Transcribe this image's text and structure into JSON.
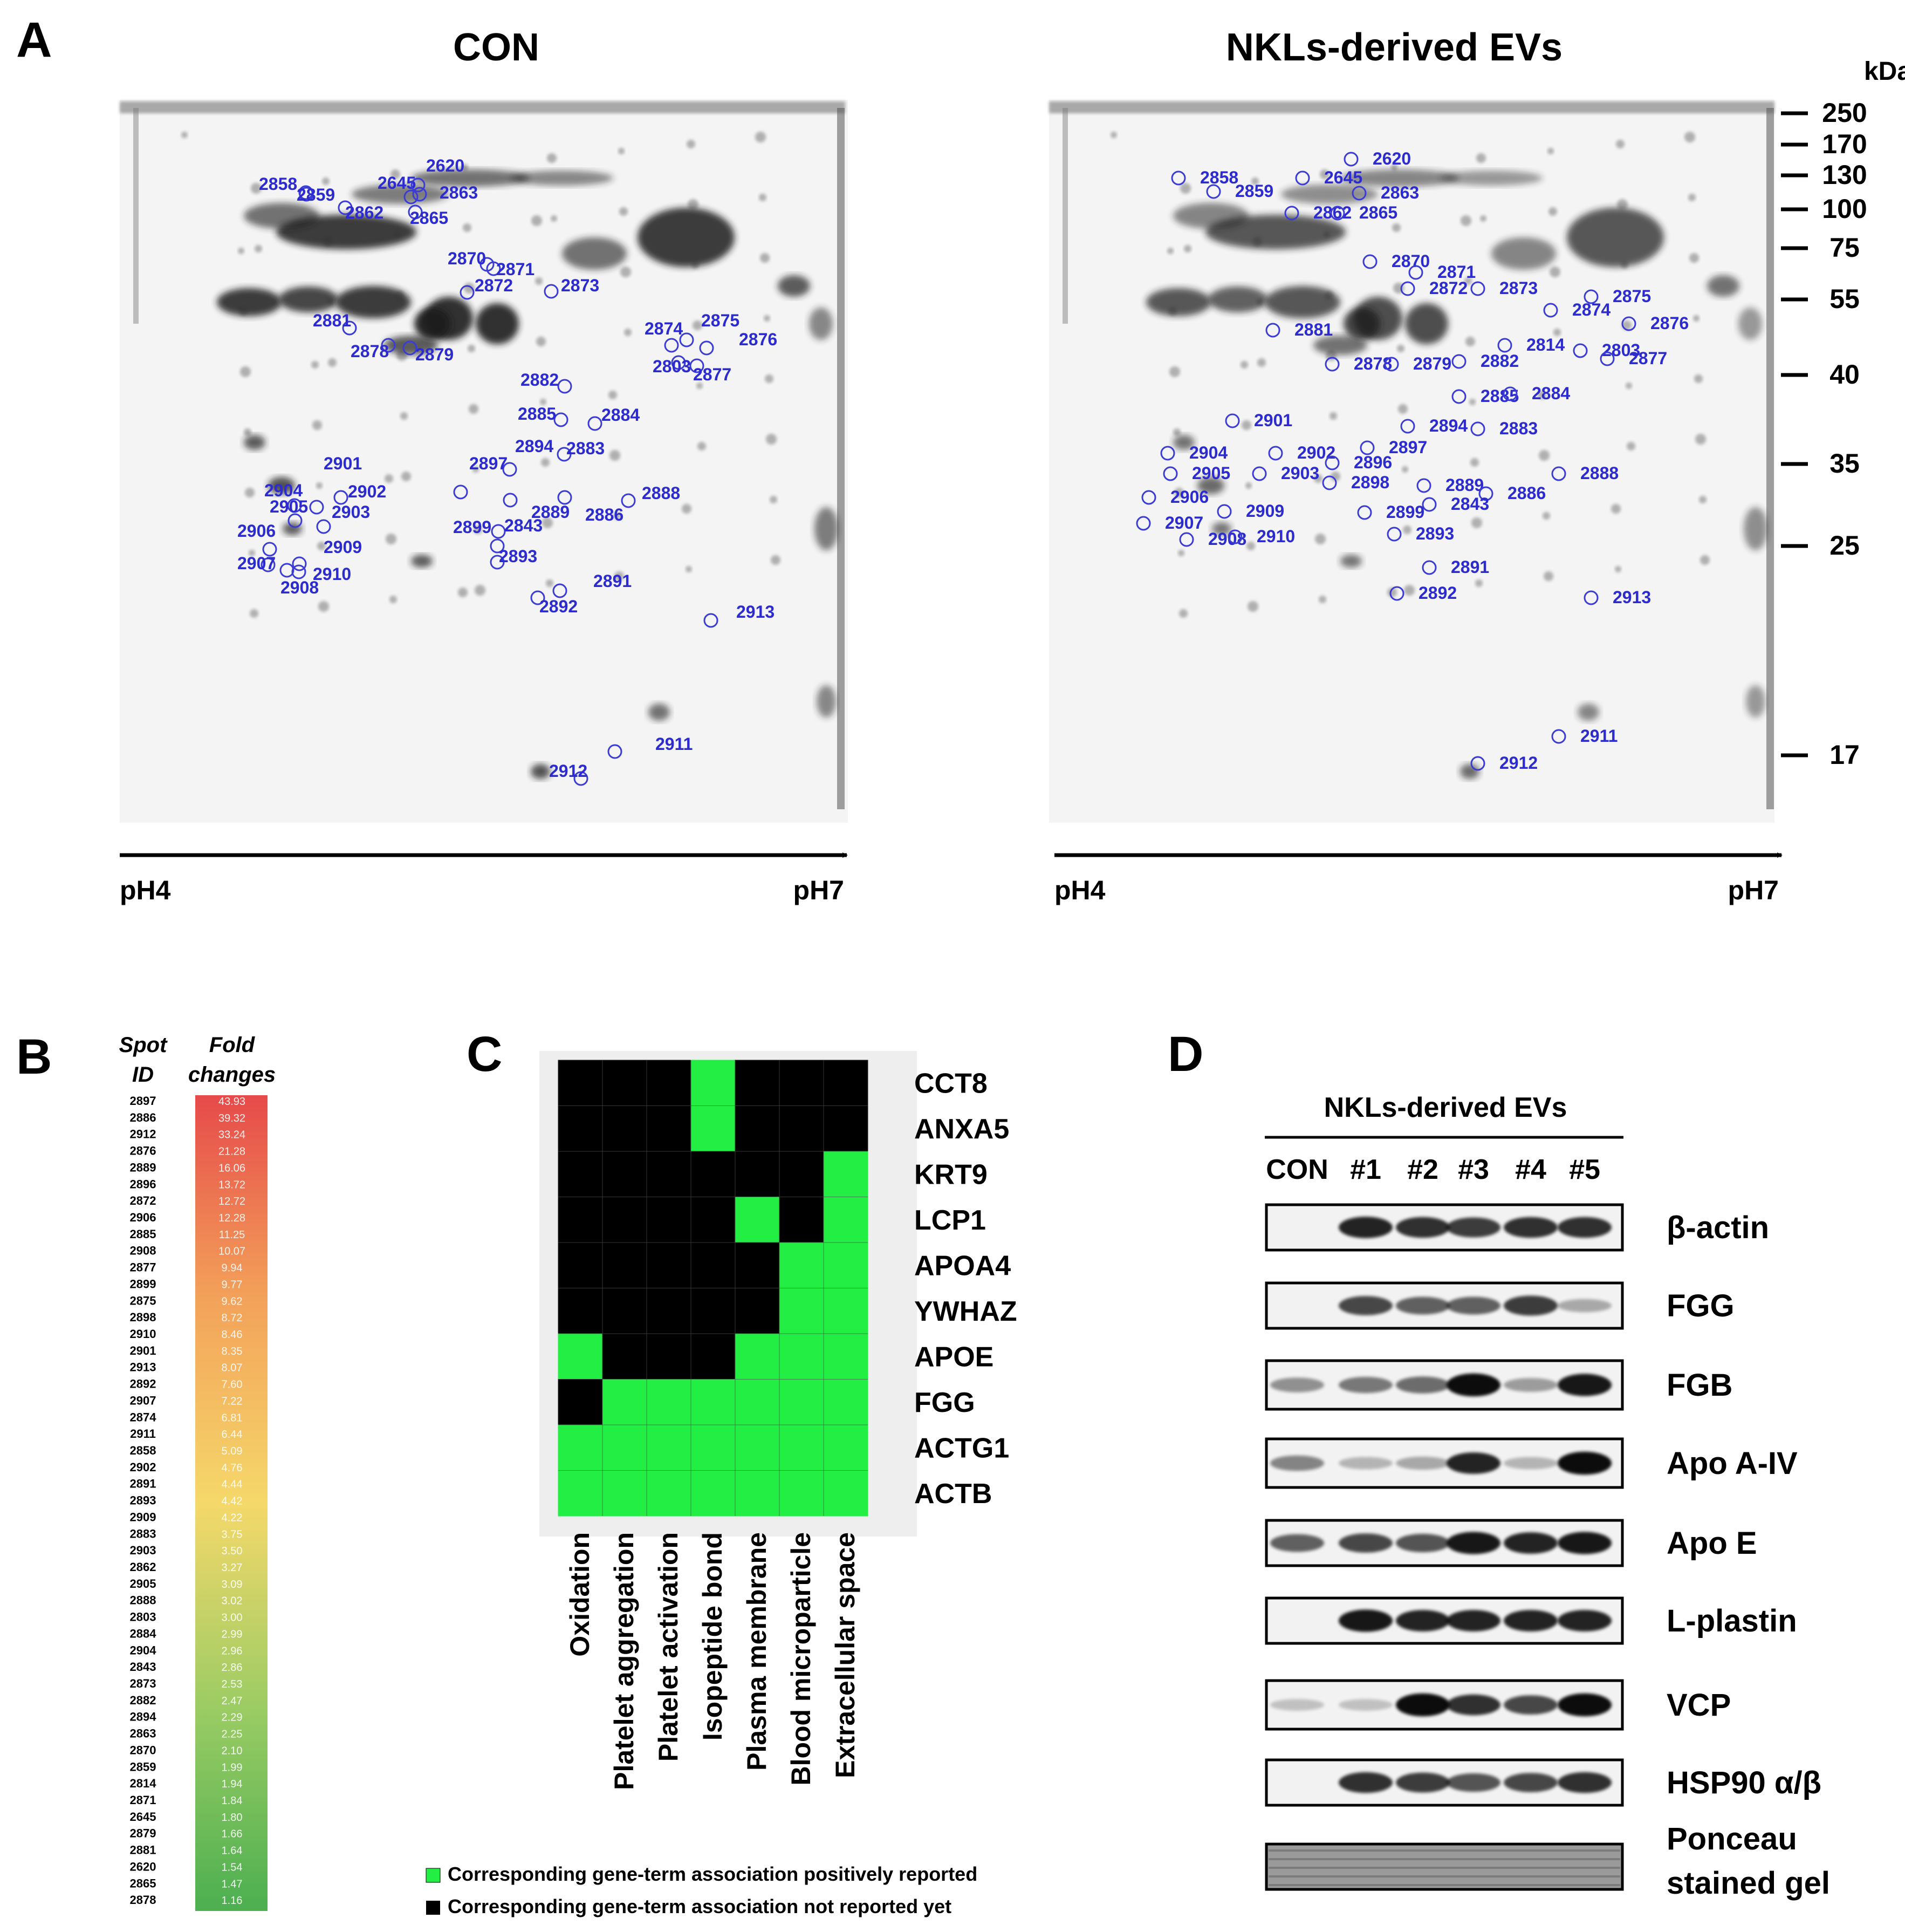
{
  "panelA": {
    "letter": "A",
    "left_title": "CON",
    "right_title": "NKLs-derived EVs",
    "ph_low": "pH4",
    "ph_high": "pH7",
    "kda_label": "kDa",
    "markers": [
      "250",
      "170",
      "130",
      "100",
      "75",
      "55",
      "40",
      "35",
      "25",
      "17"
    ],
    "spots_con": [
      "2858",
      "2859",
      "2645",
      "2620",
      "2862",
      "2863",
      "2865",
      "2870",
      "2871",
      "2872",
      "2873",
      "2881",
      "2878",
      "2879",
      "2874",
      "2875",
      "2876",
      "2803",
      "2877",
      "2882",
      "2885",
      "2884",
      "2894",
      "2883",
      "2897",
      "2901",
      "2904",
      "2905",
      "2902",
      "2903",
      "2889",
      "2886",
      "2888",
      "2843",
      "2899",
      "2893",
      "2906",
      "2909",
      "2907",
      "2910",
      "2908",
      "2891",
      "2892",
      "2913",
      "2911",
      "2912"
    ],
    "spots_nkl": [
      "2858",
      "2859",
      "2645",
      "2620",
      "2863",
      "2862",
      "2865",
      "2870",
      "2871",
      "2872",
      "2873",
      "2881",
      "2878",
      "2879",
      "2882",
      "2814",
      "2874",
      "2875",
      "2876",
      "2803",
      "2877",
      "2885",
      "2884",
      "2894",
      "2883",
      "2897",
      "2901",
      "2904",
      "2905",
      "2902",
      "2903",
      "2896",
      "2898",
      "2889",
      "2886",
      "2888",
      "2843",
      "2899",
      "2893",
      "2906",
      "2909",
      "2907",
      "2908",
      "2910",
      "2891",
      "2892",
      "2913",
      "2911",
      "2912"
    ]
  },
  "panelB": {
    "letter": "B",
    "col1_header": [
      "Spot",
      "ID"
    ],
    "col2_header": [
      "Fold",
      "changes"
    ],
    "spot_ids": [
      "2897",
      "2886",
      "2912",
      "2876",
      "2889",
      "2896",
      "2872",
      "2906",
      "2885",
      "2908",
      "2877",
      "2899",
      "2875",
      "2898",
      "2910",
      "2901",
      "2913",
      "2892",
      "2907",
      "2874",
      "2911",
      "2858",
      "2902",
      "2891",
      "2893",
      "2909",
      "2883",
      "2903",
      "2862",
      "2905",
      "2888",
      "2803",
      "2884",
      "2904",
      "2843",
      "2873",
      "2882",
      "2894",
      "2863",
      "2870",
      "2859",
      "2814",
      "2871",
      "2645",
      "2879",
      "2881",
      "2620",
      "2865",
      "2878"
    ],
    "fold_changes": [
      "43.93",
      "39.32",
      "33.24",
      "21.28",
      "16.06",
      "13.72",
      "12.72",
      "12.28",
      "11.25",
      "10.07",
      "9.94",
      "9.77",
      "9.62",
      "8.72",
      "8.46",
      "8.35",
      "8.07",
      "7.60",
      "7.22",
      "6.81",
      "6.44",
      "5.09",
      "4.76",
      "4.44",
      "4.42",
      "4.22",
      "3.75",
      "3.50",
      "3.27",
      "3.09",
      "3.02",
      "3.00",
      "2.99",
      "2.96",
      "2.86",
      "2.53",
      "2.47",
      "2.29",
      "2.25",
      "2.10",
      "1.99",
      "1.94",
      "1.84",
      "1.80",
      "1.66",
      "1.64",
      "1.54",
      "1.47",
      "1.16"
    ]
  },
  "panelC": {
    "letter": "C",
    "genes": [
      "CCT8",
      "ANXA5",
      "KRT9",
      "LCP1",
      "APOA4",
      "YWHAZ",
      "APOE",
      "FGG",
      "ACTG1",
      "ACTB"
    ],
    "terms": [
      "Oxidation",
      "Platelet aggregation",
      "Platelet activation",
      "Isopeptide bond",
      "Plasma membrane",
      "Blood microparticle",
      "Extracellular space"
    ],
    "matrix": [
      [
        0,
        0,
        0,
        1,
        0,
        0,
        0
      ],
      [
        0,
        0,
        0,
        1,
        0,
        0,
        0
      ],
      [
        0,
        0,
        0,
        0,
        0,
        0,
        1
      ],
      [
        0,
        0,
        0,
        0,
        1,
        0,
        1
      ],
      [
        0,
        0,
        0,
        0,
        0,
        1,
        1
      ],
      [
        0,
        0,
        0,
        0,
        0,
        1,
        1
      ],
      [
        1,
        0,
        0,
        0,
        1,
        1,
        1
      ],
      [
        0,
        1,
        1,
        1,
        1,
        1,
        1
      ],
      [
        1,
        1,
        1,
        1,
        1,
        1,
        1
      ],
      [
        1,
        1,
        1,
        1,
        1,
        1,
        1
      ]
    ],
    "legend_positive": "Corresponding gene-term association positively reported",
    "legend_negative": "Corresponding gene-term association not reported yet",
    "color_positive": "#22ee44",
    "color_negative": "#000000"
  },
  "panelD": {
    "letter": "D",
    "group_label": "NKLs-derived EVs",
    "lanes": [
      "CON",
      "#1",
      "#2",
      "#3",
      "#4",
      "#5"
    ],
    "blots": [
      {
        "label": "β-actin",
        "intensity": [
          0.0,
          0.85,
          0.8,
          0.75,
          0.8,
          0.8
        ]
      },
      {
        "label": "FGG",
        "intensity": [
          0.0,
          0.7,
          0.6,
          0.6,
          0.75,
          0.3
        ]
      },
      {
        "label": "FGB",
        "intensity": [
          0.4,
          0.5,
          0.55,
          0.95,
          0.35,
          0.9
        ]
      },
      {
        "label": "Apo A-IV",
        "intensity": [
          0.45,
          0.25,
          0.3,
          0.85,
          0.25,
          0.95
        ]
      },
      {
        "label": "Apo E",
        "intensity": [
          0.6,
          0.7,
          0.65,
          0.9,
          0.85,
          0.9
        ]
      },
      {
        "label": "L-plastin",
        "intensity": [
          0.0,
          0.9,
          0.85,
          0.85,
          0.85,
          0.85
        ]
      },
      {
        "label": "VCP",
        "intensity": [
          0.2,
          0.2,
          0.95,
          0.8,
          0.7,
          0.95
        ]
      },
      {
        "label": "HSP90 α/β",
        "intensity": [
          0.0,
          0.8,
          0.75,
          0.65,
          0.7,
          0.8
        ]
      },
      {
        "label": "Ponceau stained gel",
        "intensity": [
          0.35,
          0.35,
          0.35,
          0.35,
          0.35,
          0.35
        ]
      }
    ],
    "ponceau_line1": "Ponceau",
    "ponceau_line2": "stained gel"
  }
}
